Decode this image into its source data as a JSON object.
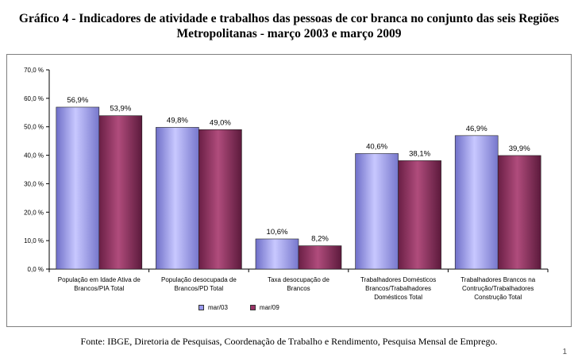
{
  "title_line1": "Gráfico 4 - Indicadores de atividade e trabalhos das pessoas de cor branca no conjunto das seis Regiões",
  "title_line2": "Metropolitanas - março 2003 e março 2009",
  "source": "Fonte: IBGE, Diretoria de Pesquisas, Coordenação de Trabalho e Rendimento, Pesquisa Mensal de Emprego.",
  "page_number": "1",
  "colors": {
    "mar03": "#9999ee",
    "mar09": "#993366"
  },
  "chart_data": {
    "type": "bar",
    "title": "",
    "xlabel": "",
    "ylabel": "",
    "ylim": [
      0,
      70
    ],
    "yticks": [
      "0,0 %",
      "10,0 %",
      "20,0 %",
      "30,0 %",
      "40,0 %",
      "50,0 %",
      "60,0 %",
      "70,0 %"
    ],
    "legend_position": "bottom",
    "categories": [
      [
        "População em Idade Ativa de",
        "Brancos/PIA Total"
      ],
      [
        "População desocupada de",
        "Brancos/PD Total"
      ],
      [
        "Taxa desocupação de",
        "Brancos"
      ],
      [
        "Trabalhadores Domésticos",
        "Brancos/Trabalhadores",
        "Domésticos Total"
      ],
      [
        "Trabalhadores Brancos na",
        "Contrução/Trabalhadores",
        "Construção Total"
      ]
    ],
    "series": [
      {
        "name": "mar/03",
        "values": [
          56.9,
          49.8,
          10.6,
          40.6,
          46.9
        ],
        "labels": [
          "56,9%",
          "49,8%",
          "10,6%",
          "40,6%",
          "46,9%"
        ]
      },
      {
        "name": "mar/09",
        "values": [
          53.9,
          49.0,
          8.2,
          38.1,
          39.9
        ],
        "labels": [
          "53,9%",
          "49,0%",
          "8,2%",
          "38,1%",
          "39,9%"
        ]
      }
    ]
  }
}
